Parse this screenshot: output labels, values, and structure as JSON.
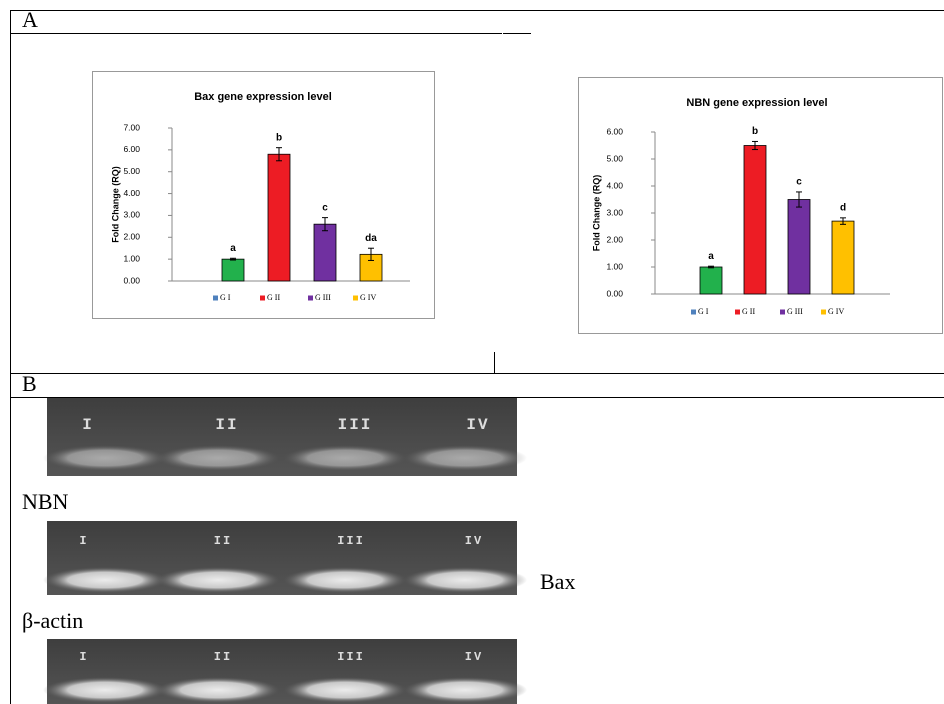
{
  "chart_data": [
    {
      "type": "bar",
      "title": "Bax gene expression level",
      "y_label": "Fold Change (RQ)",
      "categories": [
        "G I",
        "G II",
        "G III",
        "G IV"
      ],
      "values": [
        1.0,
        5.8,
        2.6,
        1.22
      ],
      "errors": [
        0.04,
        0.3,
        0.3,
        0.28
      ],
      "annotations": [
        "a",
        "b",
        "c",
        "da"
      ],
      "colors": [
        "#22b14c",
        "#ed1c24",
        "#7030a0",
        "#ffc000"
      ],
      "legend_colors": [
        "#4f81bd",
        "#ed1c24",
        "#7030a0",
        "#ffc000"
      ],
      "ylim": [
        0,
        7
      ],
      "yticks": [
        {
          "value": 0,
          "label": "0.00"
        },
        {
          "value": 1,
          "label": "1.00"
        },
        {
          "value": 2,
          "label": "2.00"
        },
        {
          "value": 3,
          "label": "3.00"
        },
        {
          "value": 4,
          "label": "4.00"
        },
        {
          "value": 5,
          "label": "5.00"
        },
        {
          "value": 6,
          "label": "6.00"
        },
        {
          "value": 7,
          "label": "7.00"
        }
      ]
    },
    {
      "type": "bar",
      "title": "NBN gene expression level",
      "y_label": "Fold Change (RQ)",
      "categories": [
        "G I",
        "G II",
        "G III",
        "G IV"
      ],
      "values": [
        1.0,
        5.5,
        3.5,
        2.7
      ],
      "errors": [
        0.03,
        0.15,
        0.28,
        0.12
      ],
      "annotations": [
        "a",
        "b",
        "c",
        "d"
      ],
      "colors": [
        "#22b14c",
        "#ed1c24",
        "#7030a0",
        "#ffc000"
      ],
      "legend_colors": [
        "#4f81bd",
        "#ed1c24",
        "#7030a0",
        "#ffc000"
      ],
      "ylim": [
        0,
        6
      ],
      "yticks": [
        {
          "value": 0,
          "label": "0.00"
        },
        {
          "value": 1,
          "label": "1.00"
        },
        {
          "value": 2,
          "label": "2.00"
        },
        {
          "value": 3,
          "label": "3.00"
        },
        {
          "value": 4,
          "label": "4.00"
        },
        {
          "value": 5,
          "label": "5.00"
        },
        {
          "value": 6,
          "label": "6.00"
        }
      ]
    }
  ],
  "panels": {
    "a": "A",
    "b": "B"
  },
  "gel_labels": {
    "nbn": "NBN",
    "actin": "β-actin",
    "bax": "Bax"
  },
  "gels": [
    {
      "lanes": [
        "I",
        "II",
        "III",
        "IV"
      ]
    },
    {
      "lanes": [
        "I",
        "II",
        "III",
        "IV"
      ]
    },
    {
      "lanes": [
        "I",
        "II",
        "III",
        "IV"
      ]
    }
  ]
}
